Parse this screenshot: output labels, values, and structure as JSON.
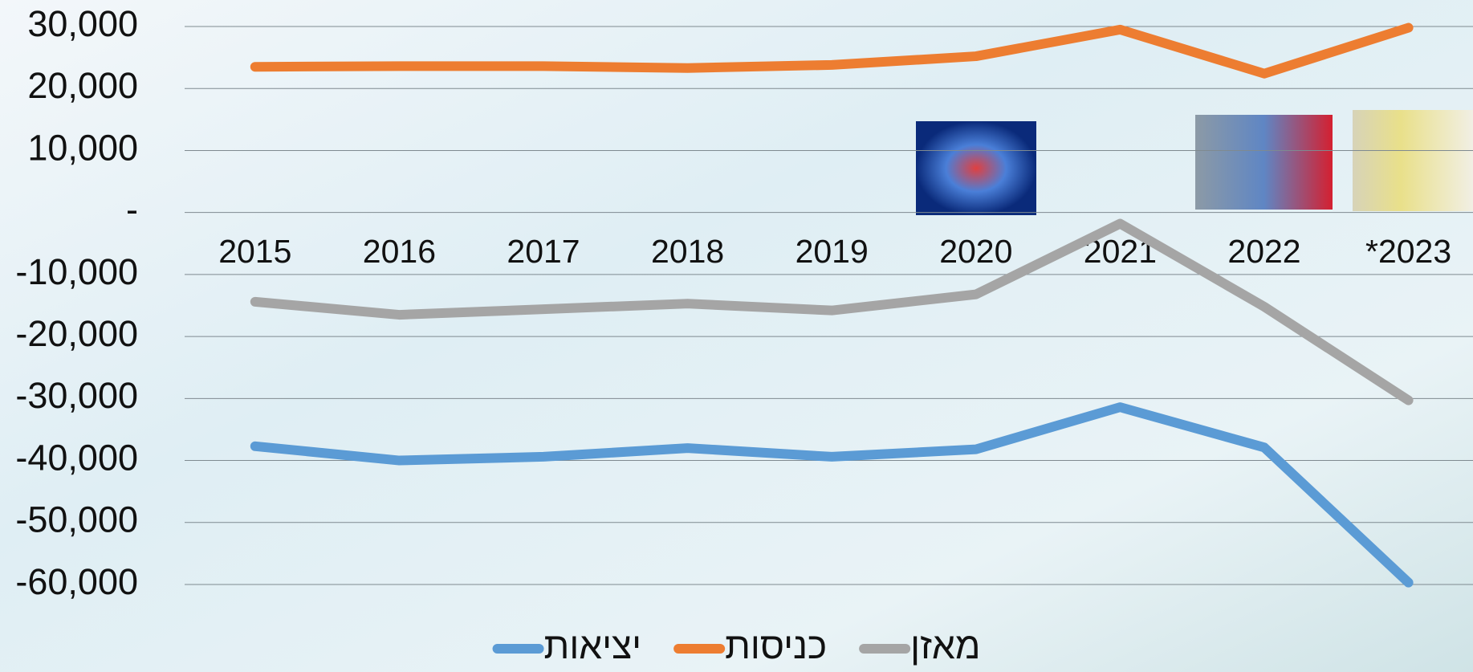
{
  "chart_data": {
    "type": "line",
    "categories": [
      "2015",
      "2016",
      "2017",
      "2018",
      "2019",
      "2020",
      "2021",
      "2022",
      "*2023"
    ],
    "series": [
      {
        "name": "יציאות",
        "color": "#5b9bd5",
        "values": [
          -37700,
          -40000,
          -39400,
          -38000,
          -39400,
          -38200,
          -31400,
          -37900,
          -59700
        ]
      },
      {
        "name": "כניסות",
        "color": "#ed7d31",
        "values": [
          23500,
          23600,
          23600,
          23300,
          23800,
          25200,
          29500,
          22400,
          29800
        ]
      },
      {
        "name": "מאזן",
        "color": "#a5a5a5",
        "values": [
          -14400,
          -16500,
          -15600,
          -14700,
          -15800,
          -13200,
          -1800,
          -15200,
          -30300
        ]
      }
    ],
    "ylim": [
      -60000,
      30000
    ],
    "yticks": [
      {
        "value": 30000,
        "label": "30,000"
      },
      {
        "value": 20000,
        "label": "20,000"
      },
      {
        "value": 10000,
        "label": "10,000"
      },
      {
        "value": 0,
        "label": "-"
      },
      {
        "value": -10000,
        "label": "-10,000"
      },
      {
        "value": -20000,
        "label": "-20,000"
      },
      {
        "value": -30000,
        "label": "-30,000"
      },
      {
        "value": -40000,
        "label": "-40,000"
      },
      {
        "value": -50000,
        "label": "-50,000"
      },
      {
        "value": -60000,
        "label": "-60,000"
      }
    ],
    "grid": true,
    "legend": "bottom"
  }
}
